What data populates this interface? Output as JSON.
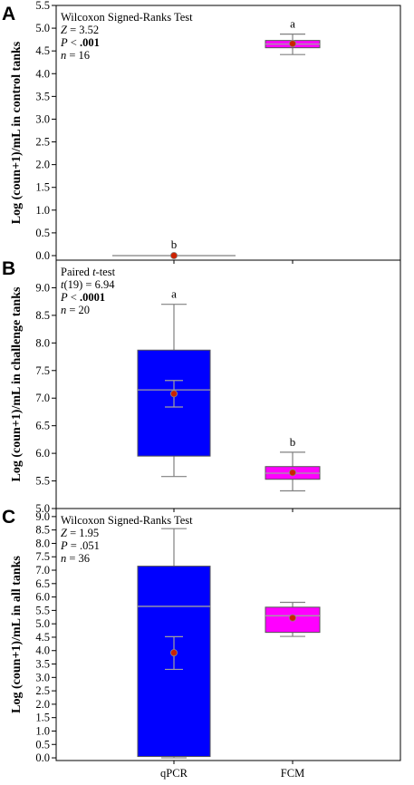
{
  "colors": {
    "qpcr_box": "#0000ff",
    "fcm_box": "#ff00ff",
    "mean_marker": "#cc2200",
    "median_line": "#a0a0a0",
    "whisker": "#808080"
  },
  "x_categories": [
    "qPCR",
    "FCM"
  ],
  "chart_data": [
    {
      "type": "box",
      "panel": "A",
      "ylabel": "Log (coun+1)/mL in control tanks",
      "ylim": [
        -0.1,
        5.5
      ],
      "yticks": [
        0.0,
        0.5,
        1.0,
        1.5,
        2.0,
        2.5,
        3.0,
        3.5,
        4.0,
        4.5,
        5.0,
        5.5
      ],
      "annotation": [
        [
          {
            "t": "Wilcoxon Signed-Ranks Test"
          }
        ],
        [
          {
            "t": "Z",
            "s": "i"
          },
          {
            "t": " = 3.52"
          }
        ],
        [
          {
            "t": "P",
            "s": "i"
          },
          {
            "t": " < "
          },
          {
            "t": ".001",
            "s": "b"
          }
        ],
        [
          {
            "t": "n",
            "s": "i"
          },
          {
            "t": " = 16"
          }
        ]
      ],
      "boxes": [
        {
          "category": "qPCR",
          "q1": 0.0,
          "median": 0.0,
          "q3": 0.0,
          "whisker_low": 0.0,
          "whisker_high": 0.0,
          "mean": 0.0,
          "letter": "b",
          "flat": true
        },
        {
          "category": "FCM",
          "q1": 4.57,
          "median": 4.65,
          "q3": 4.73,
          "whisker_low": 4.42,
          "whisker_high": 4.87,
          "mean": 4.66,
          "letter": "a"
        }
      ]
    },
    {
      "type": "box",
      "panel": "B",
      "ylabel": "Log (coun+1)/mL in challenge tanks",
      "ylim": [
        5.0,
        9.5
      ],
      "yticks": [
        5.0,
        5.5,
        6.0,
        6.5,
        7.0,
        7.5,
        8.0,
        8.5,
        9.0
      ],
      "annotation": [
        [
          {
            "t": "Paired "
          },
          {
            "t": "t",
            "s": "i"
          },
          {
            "t": "-test"
          }
        ],
        [
          {
            "t": "t",
            "s": "i"
          },
          {
            "t": "(19) = 6.94"
          }
        ],
        [
          {
            "t": "P",
            "s": "i"
          },
          {
            "t": " < "
          },
          {
            "t": ".0001",
            "s": "b"
          }
        ],
        [
          {
            "t": "n",
            "s": "i"
          },
          {
            "t": " = 20"
          }
        ]
      ],
      "boxes": [
        {
          "category": "qPCR",
          "q1": 5.95,
          "median": 7.15,
          "q3": 7.87,
          "whisker_low": 5.58,
          "whisker_high": 8.7,
          "mean": 7.08,
          "ci_low": 6.84,
          "ci_high": 7.32,
          "letter": "a"
        },
        {
          "category": "FCM",
          "q1": 5.53,
          "median": 5.64,
          "q3": 5.76,
          "whisker_low": 5.32,
          "whisker_high": 6.02,
          "mean": 5.65,
          "letter": "b"
        }
      ]
    },
    {
      "type": "box",
      "panel": "C",
      "ylabel": "Log (coun+1)/mL in all tanks",
      "ylim": [
        -0.1,
        9.3
      ],
      "yticks": [
        0.0,
        0.5,
        1.0,
        1.5,
        2.0,
        2.5,
        3.0,
        3.5,
        4.0,
        4.5,
        5.0,
        5.5,
        6.0,
        6.5,
        7.0,
        7.5,
        8.0,
        8.5,
        9.0
      ],
      "annotation": [
        [
          {
            "t": "Wilcoxon Signed-Ranks Test"
          }
        ],
        [
          {
            "t": "Z",
            "s": "i"
          },
          {
            "t": " = 1.95"
          }
        ],
        [
          {
            "t": "P",
            "s": "i"
          },
          {
            "t": " = .051"
          }
        ],
        [
          {
            "t": "n",
            "s": "i"
          },
          {
            "t": " = 36"
          }
        ]
      ],
      "boxes": [
        {
          "category": "qPCR",
          "q1": 0.05,
          "median": 5.65,
          "q3": 7.15,
          "whisker_low": 0.0,
          "whisker_high": 8.55,
          "mean": 3.92,
          "ci_low": 3.3,
          "ci_high": 4.52,
          "letter": ""
        },
        {
          "category": "FCM",
          "q1": 4.68,
          "median": 5.3,
          "q3": 5.62,
          "whisker_low": 4.53,
          "whisker_high": 5.8,
          "mean": 5.22,
          "letter": ""
        }
      ]
    }
  ]
}
